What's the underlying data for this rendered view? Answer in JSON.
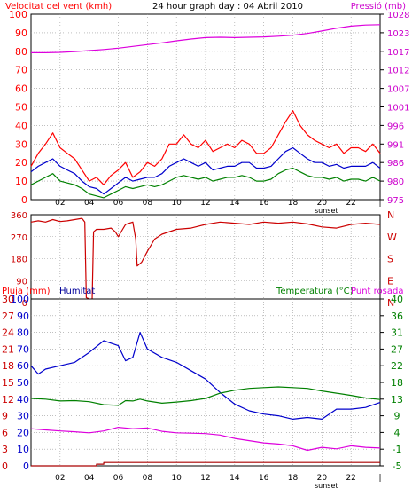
{
  "chart_data": [
    {
      "type": "line",
      "title": "24 hour graph day : 04 Abril 2010",
      "left_axis_label": "Velocitat del vent (kmh)",
      "right_axis_label": "Pressió (mb)",
      "x_ticks": [
        "02",
        "04",
        "06",
        "08",
        "10",
        "12",
        "14",
        "16",
        "18",
        "20",
        "22",
        "|"
      ],
      "x_subtext": "sunset",
      "x_range": [
        0,
        24
      ],
      "left_ticks": [
        0,
        10,
        20,
        30,
        40,
        50,
        60,
        70,
        80,
        90,
        100
      ],
      "ylim_left": [
        0,
        100
      ],
      "right_ticks": [
        975,
        980,
        986,
        991,
        996,
        1001,
        1007,
        1012,
        1017,
        1023,
        1028
      ],
      "ylim_right": [
        975,
        1028
      ],
      "grid": true,
      "colors": {
        "wind_gust": "#ff0000",
        "wind_avg": "#0000cc",
        "wind_min": "#008000",
        "pressure": "#dd00dd",
        "left_axis": "#ff0000",
        "right_axis": "#cc00cc",
        "grid": "#999999",
        "axis": "#000000"
      },
      "series": [
        {
          "x": [
            0,
            0.5,
            1,
            1.5,
            2,
            2.5,
            3,
            3.5,
            4,
            4.5,
            5,
            5.5,
            6,
            6.5,
            7,
            7.5,
            8,
            8.5,
            9,
            9.5,
            10,
            10.5,
            11,
            11.5,
            12,
            12.5,
            13,
            13.5,
            14,
            14.5,
            15,
            15.5,
            16,
            16.5,
            17,
            17.5,
            18,
            18.5,
            19,
            19.5,
            20,
            20.5,
            21,
            21.5,
            22,
            22.5,
            23,
            23.5,
            24
          ],
          "values": [
            18,
            25,
            30,
            36,
            28,
            25,
            22,
            16,
            10,
            12,
            8,
            13,
            16,
            20,
            12,
            15,
            20,
            18,
            22,
            30,
            30,
            35,
            30,
            28,
            32,
            26,
            28,
            30,
            28,
            32,
            30,
            25,
            25,
            28,
            35,
            42,
            48,
            40,
            35,
            32,
            30,
            28,
            30,
            25,
            28,
            28,
            26,
            30,
            25
          ]
        },
        {
          "x": [
            0,
            0.5,
            1,
            1.5,
            2,
            2.5,
            3,
            3.5,
            4,
            4.5,
            5,
            5.5,
            6,
            6.5,
            7,
            7.5,
            8,
            8.5,
            9,
            9.5,
            10,
            10.5,
            11,
            11.5,
            12,
            12.5,
            13,
            13.5,
            14,
            14.5,
            15,
            15.5,
            16,
            16.5,
            17,
            17.5,
            18,
            18.5,
            19,
            19.5,
            20,
            20.5,
            21,
            21.5,
            22,
            22.5,
            23,
            23.5,
            24
          ],
          "values": [
            15,
            18,
            20,
            22,
            18,
            16,
            14,
            10,
            7,
            6,
            3,
            6,
            9,
            12,
            10,
            11,
            12,
            12,
            14,
            18,
            20,
            22,
            20,
            18,
            20,
            16,
            17,
            18,
            18,
            20,
            20,
            17,
            17,
            18,
            22,
            26,
            28,
            25,
            22,
            20,
            20,
            18,
            19,
            17,
            18,
            18,
            18,
            20,
            17
          ]
        },
        {
          "x": [
            0,
            0.5,
            1,
            1.5,
            2,
            2.5,
            3,
            3.5,
            4,
            4.5,
            5,
            5.5,
            6,
            6.5,
            7,
            7.5,
            8,
            8.5,
            9,
            9.5,
            10,
            10.5,
            11,
            11.5,
            12,
            12.5,
            13,
            13.5,
            14,
            14.5,
            15,
            15.5,
            16,
            16.5,
            17,
            17.5,
            18,
            18.5,
            19,
            19.5,
            20,
            20.5,
            21,
            21.5,
            22,
            22.5,
            23,
            23.5,
            24
          ],
          "values": [
            8,
            10,
            12,
            14,
            10,
            9,
            8,
            6,
            3,
            2,
            1,
            3,
            5,
            7,
            6,
            7,
            8,
            7,
            8,
            10,
            12,
            13,
            12,
            11,
            12,
            10,
            11,
            12,
            12,
            13,
            12,
            10,
            10,
            11,
            14,
            16,
            17,
            15,
            13,
            12,
            12,
            11,
            12,
            10,
            11,
            11,
            10,
            12,
            10
          ]
        },
        {
          "x": [
            0,
            1,
            2,
            3,
            4,
            5,
            6,
            7,
            8,
            9,
            10,
            11,
            12,
            13,
            14,
            15,
            16,
            17,
            18,
            19,
            20,
            21,
            22,
            23,
            24
          ],
          "values": [
            1017.0,
            1017.0,
            1017.1,
            1017.3,
            1017.6,
            1017.9,
            1018.3,
            1018.8,
            1019.3,
            1019.8,
            1020.4,
            1020.9,
            1021.3,
            1021.4,
            1021.3,
            1021.4,
            1021.5,
            1021.7,
            1022.0,
            1022.5,
            1023.2,
            1024.0,
            1024.6,
            1024.9,
            1025.0
          ]
        }
      ]
    },
    {
      "type": "line",
      "left_ticks": [
        0,
        90,
        180,
        270,
        360
      ],
      "ylim": [
        0,
        360
      ],
      "right_labels": [
        "N",
        "W",
        "S",
        "E",
        "N"
      ],
      "color": "#cc0000",
      "grid": true,
      "series": [
        {
          "x": [
            0,
            0.5,
            1,
            1.5,
            2,
            2.5,
            3,
            3.5,
            3.7,
            3.8,
            4.2,
            4.3,
            4.5,
            5,
            5.5,
            5.8,
            6,
            6.3,
            6.5,
            7,
            7.2,
            7.3,
            7.6,
            8,
            8.5,
            9,
            10,
            11,
            12,
            13,
            14,
            15,
            16,
            17,
            18,
            19,
            20,
            21,
            22,
            23,
            24
          ],
          "values": [
            330,
            335,
            330,
            340,
            332,
            335,
            340,
            345,
            330,
            20,
            10,
            290,
            300,
            300,
            305,
            290,
            270,
            300,
            320,
            330,
            260,
            150,
            165,
            210,
            260,
            280,
            300,
            305,
            320,
            330,
            325,
            320,
            330,
            325,
            330,
            322,
            310,
            305,
            320,
            325,
            320
          ]
        }
      ]
    },
    {
      "type": "line",
      "left_axis_label": "Pluja (mm)",
      "humidity_label": "Humitat",
      "temp_label": "Temperatura (°C)",
      "dew_label": "Punt rosada",
      "x_ticks": [
        "02",
        "04",
        "06",
        "08",
        "10",
        "12",
        "14",
        "16",
        "18",
        "20",
        "22",
        "|"
      ],
      "x_subtext": "sunset",
      "rain_ticks": [
        0,
        3,
        6,
        9,
        12,
        15,
        18,
        21,
        24,
        27,
        30
      ],
      "rain_ylim": [
        0,
        30
      ],
      "humidity_ticks": [
        0,
        10,
        20,
        30,
        40,
        50,
        60,
        70,
        80,
        90,
        100
      ],
      "humidity_ylim": [
        0,
        100
      ],
      "temp_ticks": [
        -5,
        -1,
        4,
        9,
        13,
        18,
        22,
        27,
        31,
        36,
        40
      ],
      "temp_ylim": [
        -5,
        40
      ],
      "grid": true,
      "colors": {
        "humidity": "#0000cc",
        "temperature": "#008000",
        "dew_point": "#dd00dd",
        "rain": "#aa0000"
      },
      "series": [
        {
          "name": "Humitat",
          "x": [
            0,
            0.5,
            1,
            2,
            3,
            4,
            5,
            6,
            6.5,
            7,
            7.5,
            8,
            9,
            10,
            11,
            12,
            13,
            14,
            15,
            16,
            17,
            18,
            19,
            20,
            21,
            22,
            23,
            24
          ],
          "values": [
            60,
            55,
            58,
            60,
            62,
            68,
            75,
            72,
            63,
            65,
            80,
            70,
            65,
            62,
            57,
            52,
            44,
            37,
            33,
            31,
            30,
            28,
            29,
            28,
            34,
            34,
            35,
            38
          ]
        },
        {
          "name": "Temperatura (°C)",
          "x": [
            0,
            1,
            2,
            3,
            4,
            5,
            6,
            6.5,
            7,
            7.5,
            8,
            9,
            10,
            11,
            12,
            13,
            14,
            15,
            16,
            17,
            18,
            19,
            20,
            21,
            22,
            23,
            24
          ],
          "values": [
            13.2,
            13.0,
            12.5,
            12.6,
            12.3,
            11.5,
            11.3,
            12.6,
            12.5,
            13.0,
            12.5,
            11.9,
            12.2,
            12.6,
            13.2,
            14.6,
            15.4,
            15.9,
            16.1,
            16.3,
            16.1,
            15.9,
            15.2,
            14.6,
            14.0,
            13.3,
            12.9
          ]
        },
        {
          "name": "Punt rosada",
          "x": [
            0,
            1,
            2,
            3,
            4,
            5,
            6,
            7,
            8,
            9,
            10,
            11,
            12,
            13,
            14,
            15,
            16,
            17,
            18,
            19,
            20,
            21,
            22,
            23,
            24
          ],
          "values": [
            5.0,
            4.7,
            4.4,
            4.2,
            3.9,
            4.4,
            5.4,
            5.0,
            5.2,
            4.3,
            3.9,
            3.8,
            3.7,
            3.3,
            2.4,
            1.8,
            1.2,
            0.9,
            0.4,
            -0.8,
            0.0,
            -0.4,
            0.4,
            0.0,
            -0.2
          ]
        },
        {
          "name": "Pluja (mm)",
          "x": [
            0,
            4.5,
            4.5,
            5,
            5,
            5.5,
            24
          ],
          "values": [
            0,
            0,
            0.3,
            0.3,
            0.6,
            0.6,
            0.6
          ]
        }
      ]
    }
  ]
}
